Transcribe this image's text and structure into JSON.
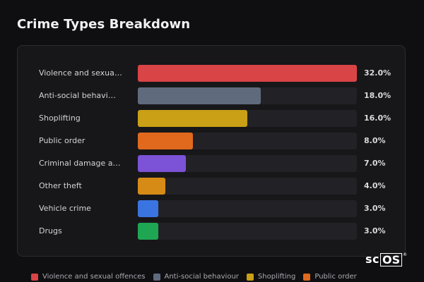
{
  "title": "Crime Types Breakdown",
  "brand": {
    "prefix": "sc",
    "boxed": "OS",
    "mark": "®"
  },
  "chart_data": {
    "type": "bar",
    "orientation": "horizontal",
    "categories": [
      "Violence and sexua…",
      "Anti-social behavi…",
      "Shoplifting",
      "Public order",
      "Criminal damage an…",
      "Other theft",
      "Vehicle crime",
      "Drugs"
    ],
    "values": [
      32.0,
      18.0,
      16.0,
      8.0,
      7.0,
      4.0,
      3.0,
      3.0
    ],
    "value_labels": [
      "32.0%",
      "18.0%",
      "16.0%",
      "8.0%",
      "7.0%",
      "4.0%",
      "3.0%",
      "3.0%"
    ],
    "colors": [
      "#d94447",
      "#5f6b7d",
      "#c9a016",
      "#e0691e",
      "#7c52d6",
      "#d68b16",
      "#3a74e0",
      "#1fa653"
    ],
    "xlim": [
      0,
      32
    ],
    "legend_placement": "bottom",
    "grid": false
  },
  "legend": [
    {
      "label": "Violence and sexual offences",
      "color": "#d94447"
    },
    {
      "label": "Anti-social behaviour",
      "color": "#5f6b7d"
    },
    {
      "label": "Shoplifting",
      "color": "#c9a016"
    },
    {
      "label": "Public order",
      "color": "#e0691e"
    }
  ]
}
